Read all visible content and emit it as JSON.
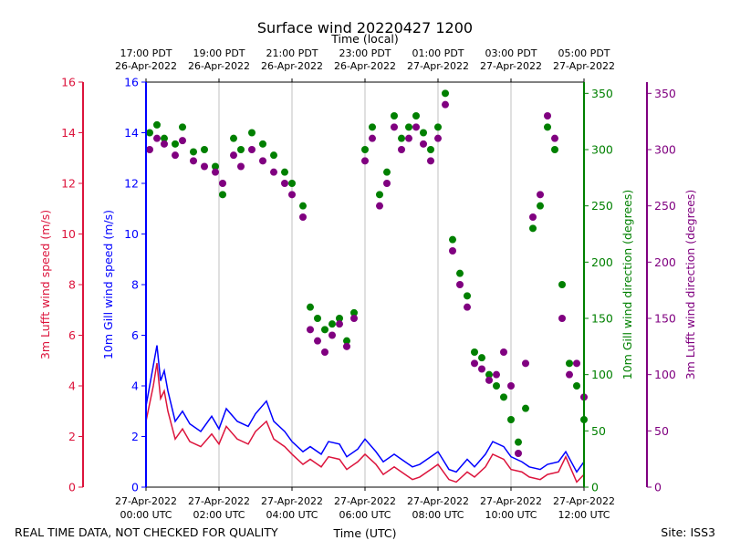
{
  "chart_data": {
    "type": "line+scatter",
    "title": "Surface wind 20220427 1200",
    "top_axis_label": "Time (local)",
    "xlabel": "Time (UTC)",
    "footer_left": "REAL TIME DATA, NOT CHECKED FOR QUALITY",
    "footer_right": "Site: ISS3",
    "x_range_hours_utc": [
      0,
      12
    ],
    "top_ticks": [
      {
        "x": 0,
        "line1": "17:00 PDT",
        "line2": "26-Apr-2022"
      },
      {
        "x": 2,
        "line1": "19:00 PDT",
        "line2": "26-Apr-2022"
      },
      {
        "x": 4,
        "line1": "21:00 PDT",
        "line2": "26-Apr-2022"
      },
      {
        "x": 6,
        "line1": "23:00 PDT",
        "line2": "26-Apr-2022"
      },
      {
        "x": 8,
        "line1": "01:00 PDT",
        "line2": "27-Apr-2022"
      },
      {
        "x": 10,
        "line1": "03:00 PDT",
        "line2": "27-Apr-2022"
      },
      {
        "x": 12,
        "line1": "05:00 PDT",
        "line2": "27-Apr-2022"
      }
    ],
    "bottom_ticks": [
      {
        "x": 0,
        "line1": "27-Apr-2022",
        "line2": "00:00 UTC"
      },
      {
        "x": 2,
        "line1": "27-Apr-2022",
        "line2": "02:00 UTC"
      },
      {
        "x": 4,
        "line1": "27-Apr-2022",
        "line2": "04:00 UTC"
      },
      {
        "x": 6,
        "line1": "27-Apr-2022",
        "line2": "06:00 UTC"
      },
      {
        "x": 8,
        "line1": "27-Apr-2022",
        "line2": "08:00 UTC"
      },
      {
        "x": 10,
        "line1": "27-Apr-2022",
        "line2": "10:00 UTC"
      },
      {
        "x": 12,
        "line1": "27-Apr-2022",
        "line2": "12:00 UTC"
      }
    ],
    "axes": {
      "lufft_speed": {
        "label": "3m Lufft wind speed (m/s)",
        "color": "#dc143c",
        "range": [
          0,
          16
        ],
        "ticks": [
          0,
          2,
          4,
          6,
          8,
          10,
          12,
          14,
          16
        ]
      },
      "gill_speed": {
        "label": "10m Gill wind speed (m/s)",
        "color": "#0000ff",
        "range": [
          0,
          16
        ],
        "ticks": [
          0,
          2,
          4,
          6,
          8,
          10,
          12,
          14,
          16
        ]
      },
      "gill_dir": {
        "label": "10m Gill wind direction (degrees)",
        "color": "#008000",
        "range": [
          0,
          360
        ],
        "ticks": [
          0,
          50,
          100,
          150,
          200,
          250,
          300,
          350
        ]
      },
      "lufft_dir": {
        "label": "3m Lufft wind direction (degrees)",
        "color": "#800080",
        "range": [
          0,
          360
        ],
        "ticks": [
          0,
          50,
          100,
          150,
          200,
          250,
          300,
          350
        ]
      }
    },
    "series": [
      {
        "name": "10m Gill wind speed",
        "kind": "line",
        "axis": "gill_speed",
        "color": "#0000ff",
        "x": [
          0,
          0.2,
          0.3,
          0.4,
          0.5,
          0.6,
          0.8,
          1,
          1.2,
          1.5,
          1.8,
          2,
          2.2,
          2.5,
          2.8,
          3,
          3.3,
          3.5,
          3.8,
          4,
          4.3,
          4.5,
          4.8,
          5,
          5.3,
          5.5,
          5.8,
          6,
          6.3,
          6.5,
          6.8,
          7,
          7.3,
          7.5,
          7.8,
          8,
          8.3,
          8.5,
          8.8,
          9,
          9.3,
          9.5,
          9.8,
          10,
          10.3,
          10.5,
          10.8,
          11,
          11.3,
          11.5,
          11.8,
          12
        ],
        "y": [
          3.2,
          4.8,
          5.6,
          4.2,
          4.6,
          3.8,
          2.6,
          3.0,
          2.5,
          2.2,
          2.8,
          2.3,
          3.1,
          2.6,
          2.4,
          2.9,
          3.4,
          2.6,
          2.2,
          1.8,
          1.4,
          1.6,
          1.3,
          1.8,
          1.7,
          1.2,
          1.5,
          1.9,
          1.4,
          1.0,
          1.3,
          1.1,
          0.8,
          0.9,
          1.2,
          1.4,
          0.7,
          0.6,
          1.1,
          0.8,
          1.3,
          1.8,
          1.6,
          1.2,
          1.0,
          0.8,
          0.7,
          0.9,
          1.0,
          1.4,
          0.6,
          1.0
        ]
      },
      {
        "name": "3m Lufft wind speed",
        "kind": "line",
        "axis": "lufft_speed",
        "color": "#dc143c",
        "x": [
          0,
          0.2,
          0.3,
          0.4,
          0.5,
          0.6,
          0.8,
          1,
          1.2,
          1.5,
          1.8,
          2,
          2.2,
          2.5,
          2.8,
          3,
          3.3,
          3.5,
          3.8,
          4,
          4.3,
          4.5,
          4.8,
          5,
          5.3,
          5.5,
          5.8,
          6,
          6.3,
          6.5,
          6.8,
          7,
          7.3,
          7.5,
          7.8,
          8,
          8.3,
          8.5,
          8.8,
          9,
          9.3,
          9.5,
          9.8,
          10,
          10.3,
          10.5,
          10.8,
          11,
          11.3,
          11.5,
          11.8,
          12
        ],
        "y": [
          2.6,
          4.0,
          4.9,
          3.5,
          3.8,
          3.0,
          1.9,
          2.3,
          1.8,
          1.6,
          2.1,
          1.7,
          2.4,
          1.9,
          1.7,
          2.2,
          2.6,
          1.9,
          1.6,
          1.3,
          0.9,
          1.1,
          0.8,
          1.2,
          1.1,
          0.7,
          1.0,
          1.3,
          0.9,
          0.5,
          0.8,
          0.6,
          0.3,
          0.4,
          0.7,
          0.9,
          0.3,
          0.2,
          0.6,
          0.4,
          0.8,
          1.3,
          1.1,
          0.7,
          0.6,
          0.4,
          0.3,
          0.5,
          0.6,
          1.2,
          0.2,
          0.5
        ]
      },
      {
        "name": "10m Gill wind direction",
        "kind": "scatter",
        "axis": "gill_dir",
        "color": "#008000",
        "x": [
          0.1,
          0.3,
          0.5,
          0.8,
          1.0,
          1.3,
          1.6,
          1.9,
          2.1,
          2.4,
          2.6,
          2.9,
          3.2,
          3.5,
          3.8,
          4.0,
          4.3,
          4.5,
          4.7,
          4.9,
          5.1,
          5.3,
          5.5,
          5.7,
          6.0,
          6.2,
          6.4,
          6.6,
          6.8,
          7.0,
          7.2,
          7.4,
          7.6,
          7.8,
          8.0,
          8.2,
          8.4,
          8.6,
          8.8,
          9.0,
          9.2,
          9.4,
          9.6,
          9.8,
          10.0,
          10.2,
          10.4,
          10.6,
          10.8,
          11.0,
          11.2,
          11.4,
          11.6,
          11.8,
          12.0
        ],
        "y": [
          315,
          322,
          310,
          305,
          320,
          298,
          300,
          285,
          260,
          310,
          300,
          315,
          305,
          295,
          280,
          270,
          250,
          160,
          150,
          140,
          145,
          150,
          130,
          155,
          300,
          320,
          260,
          280,
          330,
          310,
          320,
          330,
          315,
          300,
          320,
          350,
          220,
          190,
          170,
          120,
          115,
          100,
          90,
          80,
          60,
          40,
          70,
          230,
          250,
          320,
          300,
          180,
          110,
          90,
          60
        ]
      },
      {
        "name": "3m Lufft wind direction",
        "kind": "scatter",
        "axis": "lufft_dir",
        "color": "#800080",
        "x": [
          0.1,
          0.3,
          0.5,
          0.8,
          1.0,
          1.3,
          1.6,
          1.9,
          2.1,
          2.4,
          2.6,
          2.9,
          3.2,
          3.5,
          3.8,
          4.0,
          4.3,
          4.5,
          4.7,
          4.9,
          5.1,
          5.3,
          5.5,
          5.7,
          6.0,
          6.2,
          6.4,
          6.6,
          6.8,
          7.0,
          7.2,
          7.4,
          7.6,
          7.8,
          8.0,
          8.2,
          8.4,
          8.6,
          8.8,
          9.0,
          9.2,
          9.4,
          9.6,
          9.8,
          10.0,
          10.2,
          10.4,
          10.6,
          10.8,
          11.0,
          11.2,
          11.4,
          11.6,
          11.8,
          12.0
        ],
        "y": [
          300,
          310,
          305,
          295,
          308,
          290,
          285,
          280,
          270,
          295,
          285,
          300,
          290,
          280,
          270,
          260,
          240,
          140,
          130,
          120,
          135,
          145,
          125,
          150,
          290,
          310,
          250,
          270,
          320,
          300,
          310,
          320,
          305,
          290,
          310,
          340,
          210,
          180,
          160,
          110,
          105,
          95,
          100,
          120,
          90,
          30,
          110,
          240,
          260,
          330,
          310,
          150,
          100,
          110,
          80
        ]
      }
    ]
  }
}
